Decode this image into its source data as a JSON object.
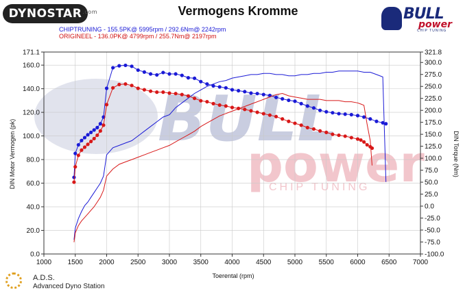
{
  "header": {
    "title": "Vermogens Kromme",
    "dynostar_logo": "DYNOSTAR",
    "dynostar_suffix": ".com",
    "bull_logo_1": "BULL",
    "bull_logo_2": "power",
    "bull_logo_3": "CHIP TUNING",
    "legend_line_1": "CHIPTRUNING  - 155.5PK@ 5995rpm / 292.6Nm@ 2242rpm",
    "legend_line_2": "ORIGINEEL  - 136.0PK@ 4799rpm / 255.7Nm@ 2197rpm"
  },
  "footer": {
    "ads_title": "A.D.S.",
    "ads_subtitle": "Advanced Dyno Station"
  },
  "watermark": {
    "bull": "BULL",
    "power": "power",
    "chip": "CHIP TUNING"
  },
  "colors": {
    "chiptuning": "#1a1ad6",
    "origineel": "#d81818",
    "grid": "#c8c8c8",
    "watermark_blue": "#c9cde0",
    "watermark_red": "#f2c6cc"
  },
  "chart_data": {
    "type": "line",
    "title": "Vermogens Kromme",
    "xlabel": "Toerental (rpm)",
    "ylabel_left": "DIN Motor Vermogen (pk)",
    "ylabel_right": "DIN Torque (Nm)",
    "xlim": [
      1000,
      7000
    ],
    "ylim_left": [
      0,
      171.1
    ],
    "ylim_right": [
      -100,
      321.8
    ],
    "x_ticks": [
      "1000",
      "1500",
      "2000",
      "2500",
      "3000",
      "3500",
      "4000",
      "4500",
      "5000",
      "5500",
      "6000",
      "6500",
      "7000"
    ],
    "y_left_ticks": [
      "0.0",
      "20.0",
      "40.0",
      "60.0",
      "80.0",
      "100.0",
      "120.0",
      "140.0",
      "160.0",
      "171.1"
    ],
    "y_right_ticks": [
      "-100.0",
      "-75.0",
      "-50.0",
      "-25.0",
      "0.0",
      "25.0",
      "50.0",
      "75.0",
      "100.0",
      "125.0",
      "150.0",
      "175.0",
      "200.0",
      "225.0",
      "250.0",
      "275.0",
      "300.0",
      "321.8"
    ],
    "grid": true,
    "series": [
      {
        "name": "CHIPTRUNING",
        "axis": "torque",
        "x": [
          1480,
          1500,
          1550,
          1600,
          1650,
          1700,
          1750,
          1800,
          1850,
          1900,
          1950,
          2000,
          2100,
          2200,
          2300,
          2400,
          2500,
          2600,
          2700,
          2800,
          2900,
          3000,
          3100,
          3200,
          3300,
          3400,
          3500,
          3600,
          3700,
          3800,
          3900,
          4000,
          4100,
          4200,
          4300,
          4400,
          4500,
          4600,
          4700,
          4800,
          4900,
          5000,
          5100,
          5200,
          5300,
          5400,
          5500,
          5600,
          5700,
          5800,
          5900,
          6000,
          6100,
          6200,
          6300,
          6400,
          6450
        ],
        "values": [
          60,
          110,
          128,
          137,
          143,
          149,
          154,
          159,
          164,
          172,
          186,
          246,
          289,
          293,
          294,
          292,
          284,
          280,
          276,
          274,
          279,
          276,
          276,
          273,
          268,
          267,
          260,
          255,
          251,
          249,
          247,
          243,
          241,
          239,
          236,
          235,
          233,
          231,
          227,
          224,
          221,
          219,
          214,
          209,
          205,
          200,
          197,
          195,
          193,
          192,
          191,
          189,
          186,
          182,
          177,
          174,
          172
        ]
      },
      {
        "name": "CHIPTRUNING",
        "axis": "power",
        "x": [
          1480,
          1500,
          1550,
          1600,
          1650,
          1700,
          1750,
          1800,
          1850,
          1900,
          1950,
          2000,
          2100,
          2200,
          2300,
          2400,
          2500,
          2600,
          2700,
          2800,
          2900,
          3000,
          3100,
          3200,
          3300,
          3400,
          3500,
          3600,
          3700,
          3800,
          3900,
          4000,
          4100,
          4200,
          4300,
          4400,
          4500,
          4600,
          4700,
          4800,
          4900,
          5000,
          5100,
          5200,
          5300,
          5400,
          5500,
          5600,
          5700,
          5800,
          5900,
          6000,
          6100,
          6200,
          6300,
          6400,
          6450
        ],
        "values": [
          12,
          22,
          30,
          36,
          41,
          44,
          48,
          52,
          56,
          60,
          66,
          84,
          90,
          92,
          94,
          96,
          100,
          104,
          108,
          112,
          116,
          118,
          124,
          128,
          132,
          136,
          139,
          142,
          144,
          146,
          147,
          149,
          150,
          151,
          152,
          152,
          153,
          153,
          152,
          152,
          151,
          151,
          152,
          152,
          153,
          153,
          154,
          154,
          155,
          155,
          155,
          155,
          154,
          154,
          152,
          150,
          61
        ]
      },
      {
        "name": "ORIGINEEL",
        "axis": "torque",
        "x": [
          1480,
          1500,
          1550,
          1600,
          1650,
          1700,
          1750,
          1800,
          1850,
          1900,
          1950,
          2000,
          2100,
          2200,
          2300,
          2400,
          2500,
          2600,
          2700,
          2800,
          2900,
          3000,
          3100,
          3200,
          3300,
          3400,
          3500,
          3600,
          3700,
          3800,
          3900,
          4000,
          4100,
          4200,
          4300,
          4400,
          4500,
          4600,
          4700,
          4800,
          4900,
          5000,
          5100,
          5200,
          5300,
          5400,
          5500,
          5600,
          5700,
          5800,
          5900,
          6000,
          6050,
          6100,
          6150,
          6200,
          6230
        ],
        "values": [
          50,
          82,
          106,
          117,
          123,
          129,
          135,
          141,
          148,
          157,
          169,
          212,
          247,
          254,
          255,
          252,
          246,
          243,
          240,
          238,
          238,
          236,
          235,
          233,
          230,
          225,
          220,
          218,
          214,
          211,
          209,
          206,
          204,
          202,
          199,
          196,
          193,
          190,
          187,
          182,
          177,
          173,
          169,
          164,
          161,
          157,
          154,
          150,
          148,
          146,
          143,
          140,
          138,
          134,
          128,
          124,
          121
        ]
      },
      {
        "name": "ORIGINEEL",
        "axis": "power",
        "x": [
          1480,
          1500,
          1550,
          1600,
          1650,
          1700,
          1750,
          1800,
          1850,
          1900,
          1950,
          2000,
          2100,
          2200,
          2300,
          2400,
          2500,
          2600,
          2700,
          2800,
          2900,
          3000,
          3100,
          3200,
          3300,
          3400,
          3500,
          3600,
          3700,
          3800,
          3900,
          4000,
          4100,
          4200,
          4300,
          4400,
          4500,
          4600,
          4700,
          4800,
          4900,
          5000,
          5100,
          5200,
          5300,
          5400,
          5500,
          5600,
          5700,
          5800,
          5900,
          6000,
          6050,
          6100,
          6150,
          6200,
          6230
        ],
        "values": [
          10,
          18,
          24,
          28,
          31,
          34,
          37,
          40,
          44,
          48,
          54,
          66,
          72,
          76,
          78,
          80,
          82,
          84,
          86,
          88,
          90,
          92,
          95,
          98,
          101,
          104,
          108,
          111,
          114,
          117,
          119,
          121,
          123,
          125,
          127,
          129,
          131,
          133,
          135,
          136,
          134,
          133,
          132,
          131,
          131,
          131,
          130,
          130,
          130,
          129,
          129,
          128,
          127,
          126,
          110,
          96,
          75
        ]
      }
    ]
  }
}
